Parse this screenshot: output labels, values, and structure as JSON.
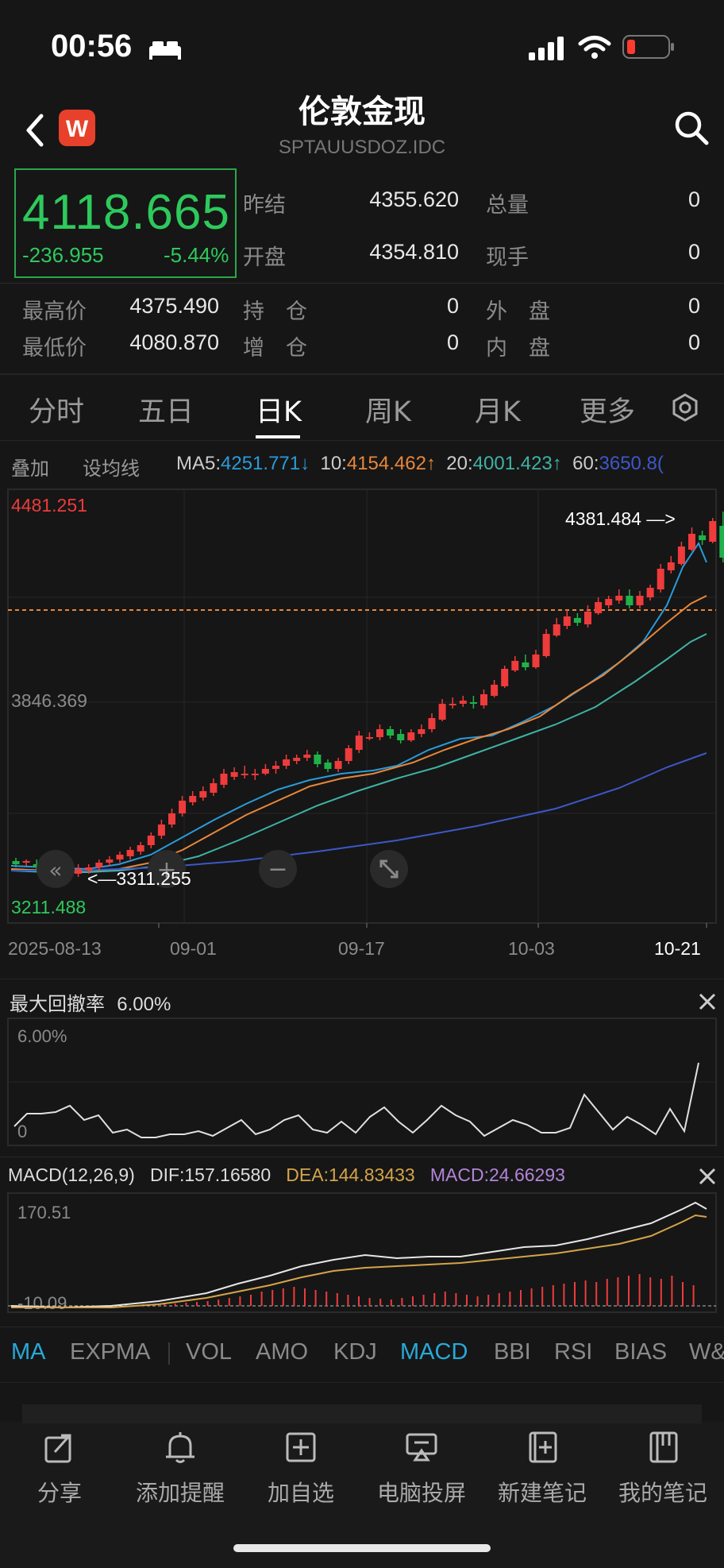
{
  "status_bar": {
    "time": "00:56"
  },
  "header": {
    "title": "伦敦金现",
    "symbol": "SPTAUUSDOZ.IDC"
  },
  "quote": {
    "price": "4118.665",
    "change": "-236.955",
    "change_pct": "-5.44%",
    "fields": [
      {
        "label": "昨结",
        "value": "4355.620"
      },
      {
        "label": "总量",
        "value": "0"
      },
      {
        "label": "开盘",
        "value": "4354.810"
      },
      {
        "label": "现手",
        "value": "0"
      },
      {
        "label": "最高价",
        "value": "4375.490"
      },
      {
        "label": "持　仓",
        "value": "0"
      },
      {
        "label": "外　盘",
        "value": "0"
      },
      {
        "label": "最低价",
        "value": "4080.870"
      },
      {
        "label": "增　仓",
        "value": "0"
      },
      {
        "label": "内　盘",
        "value": "0"
      }
    ]
  },
  "tabs": [
    "分时",
    "五日",
    "日K",
    "周K",
    "月K",
    "更多"
  ],
  "active_tab": "日K",
  "ma_bar": {
    "overlay": "叠加",
    "set_ma": "设均线",
    "items": [
      {
        "label": "MA5:",
        "value": "4251.771↓",
        "color": "#2a9bd9"
      },
      {
        "label": "10:",
        "value": "4154.462↑",
        "color": "#e8873a"
      },
      {
        "label": "20:",
        "value": "4001.423↑",
        "color": "#3fb2a4"
      },
      {
        "label": "60:",
        "value": "3650.8(",
        "color": "#3c58c8"
      }
    ]
  },
  "kline": {
    "y_max_label": "4481.251",
    "y_mid_label": "3846.369",
    "y_min_label": "3211.488",
    "high_marker": "4381.484 —>",
    "low_marker": "<—3311.255",
    "x_labels": [
      "2025-08-13",
      "09-01",
      "09-17",
      "10-03",
      "10-21"
    ],
    "up_color": "#ee3b3b",
    "down_color": "#20b24a"
  },
  "drawdown": {
    "title": "最大回撤率",
    "value": "6.00%",
    "top_label": "6.00%",
    "bottom_label": "0"
  },
  "macd": {
    "title": "MACD(12,26,9)",
    "dif": "DIF:157.16580",
    "dea": "DEA:144.83433",
    "macd": "MACD:24.66293",
    "top_label": "170.51",
    "bottom_label": "-10.09"
  },
  "indicators": [
    "MA",
    "EXPMA",
    "VOL",
    "AMO",
    "KDJ",
    "MACD",
    "BBI",
    "RSI",
    "BIAS",
    "W&"
  ],
  "bottom_bar": [
    "分享",
    "添加提醒",
    "加自选",
    "电脑投屏",
    "新建笔记",
    "我的笔记"
  ]
}
